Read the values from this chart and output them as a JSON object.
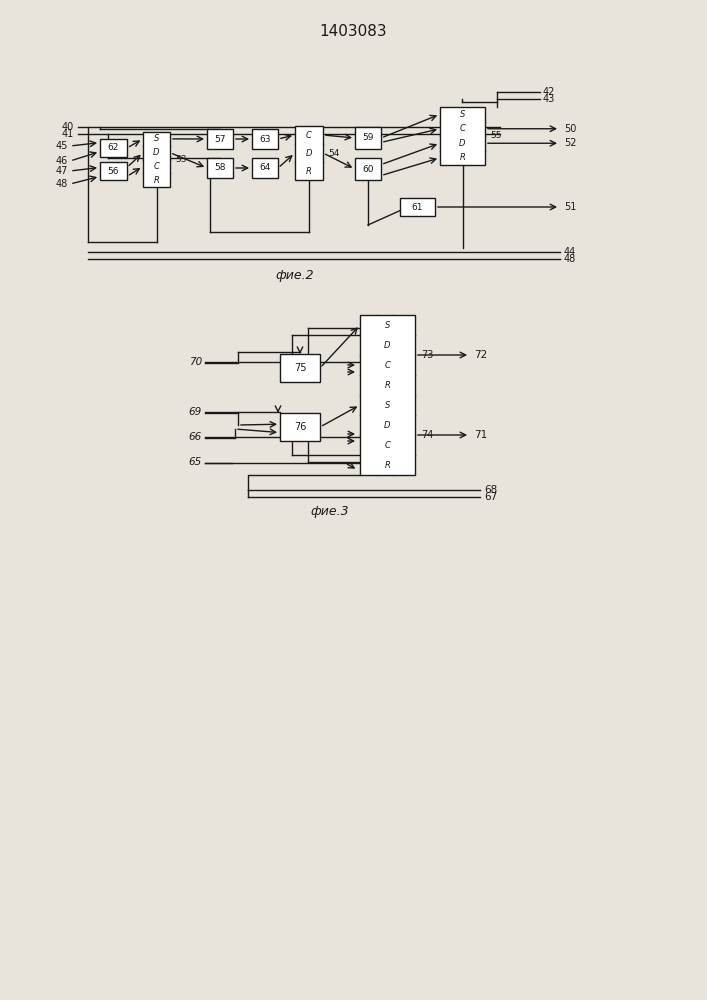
{
  "title": "1403083",
  "fig2_caption": "фие.2",
  "fig3_caption": "фие.3",
  "bg_color": "#e8e4dc",
  "line_color": "#1a1a1a",
  "box_color": "#ffffff"
}
